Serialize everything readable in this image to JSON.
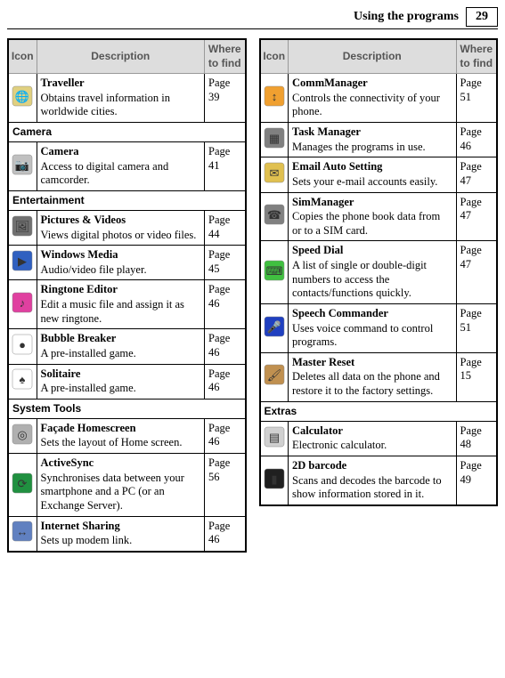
{
  "header": {
    "section_title": "Using the programs",
    "page_number": "29"
  },
  "table_headers": {
    "icon": "Icon",
    "description": "Description",
    "where": "Where to find"
  },
  "left_column": [
    {
      "type": "item",
      "icon": "traveller",
      "title": "Traveller",
      "desc": "Obtains travel information in worldwide cities.",
      "page": "Page 39"
    },
    {
      "type": "category",
      "label": "Camera"
    },
    {
      "type": "item",
      "icon": "camera",
      "title": "Camera",
      "desc": "Access to digital camera and camcorder.",
      "page": "Page 41"
    },
    {
      "type": "category",
      "label": "Entertainment"
    },
    {
      "type": "item",
      "icon": "pictures",
      "title": "Pictures & Videos",
      "desc": "Views digital photos or video files.",
      "page": "Page 44"
    },
    {
      "type": "item",
      "icon": "wmp",
      "title": "Windows Media",
      "desc": "Audio/video file player.",
      "page": "Page 45"
    },
    {
      "type": "item",
      "icon": "ringtone",
      "title": "Ringtone Editor",
      "desc": "Edit a music file and assign it as new ringtone.",
      "page": "Page 46"
    },
    {
      "type": "item",
      "icon": "bubble",
      "title": "Bubble Breaker",
      "desc": "A pre-installed game.",
      "page": "Page 46"
    },
    {
      "type": "item",
      "icon": "solitaire",
      "title": "Solitaire",
      "desc": "A pre-installed game.",
      "page": "Page 46"
    },
    {
      "type": "category",
      "label": "System Tools"
    },
    {
      "type": "item",
      "icon": "facade",
      "title": "Façade Homescreen",
      "desc": "Sets the layout of Home screen.",
      "page": "Page 46"
    },
    {
      "type": "item",
      "icon": "activesync",
      "title": "ActiveSync",
      "desc": "Synchronises data between your smartphone and a PC (or an Exchange Server).",
      "page": "Page 56"
    },
    {
      "type": "item",
      "icon": "internet-sharing",
      "title": "Internet Sharing",
      "desc": "Sets up modem link.",
      "page": "Page 46"
    }
  ],
  "right_column": [
    {
      "type": "item",
      "icon": "commmanager",
      "title": "CommManager",
      "desc": "Controls the connectivity of your phone.",
      "page": "Page 51"
    },
    {
      "type": "item",
      "icon": "taskmanager",
      "title": "Task Manager",
      "desc": "Manages the programs in use.",
      "page": "Page 46"
    },
    {
      "type": "item",
      "icon": "email-auto",
      "title": "Email Auto Setting",
      "desc": "Sets your e-mail accounts easily.",
      "page": "Page 47"
    },
    {
      "type": "item",
      "icon": "simmanager",
      "title": "SimManager",
      "desc": "Copies the phone book data from or to a SIM card.",
      "page": "Page 47"
    },
    {
      "type": "item",
      "icon": "speeddial",
      "title": "Speed Dial",
      "desc": "A list of single or double-digit numbers to access the contacts/functions quickly.",
      "page": "Page 47"
    },
    {
      "type": "item",
      "icon": "speech",
      "title": "Speech Commander",
      "desc": "Uses voice command to control programs.",
      "page": "Page 51"
    },
    {
      "type": "item",
      "icon": "master-reset",
      "title": "Master Reset",
      "desc": "Deletes all data on the phone and restore it to the factory settings.",
      "page": "Page 15"
    },
    {
      "type": "category",
      "label": "Extras"
    },
    {
      "type": "item",
      "icon": "calculator",
      "title": "Calculator",
      "desc": "Electronic calculator.",
      "page": "Page 48"
    },
    {
      "type": "item",
      "icon": "barcode",
      "title": "2D barcode",
      "desc": "Scans and decodes the barcode to show information stored in it.",
      "page": "Page 49"
    }
  ],
  "icon_colors": {
    "traveller": "#e0d080",
    "camera": "#c0c0c0",
    "pictures": "#707070",
    "wmp": "#3060c0",
    "ringtone": "#e040a0",
    "bubble": "#ffffff",
    "solitaire": "#ffffff",
    "facade": "#b0b0b0",
    "activesync": "#209040",
    "internet-sharing": "#6080c0",
    "commmanager": "#f0a030",
    "taskmanager": "#808080",
    "email-auto": "#e0c050",
    "simmanager": "#808080",
    "speeddial": "#40c040",
    "speech": "#2040c0",
    "master-reset": "#c09050",
    "calculator": "#d0d0d0",
    "barcode": "#202020"
  }
}
